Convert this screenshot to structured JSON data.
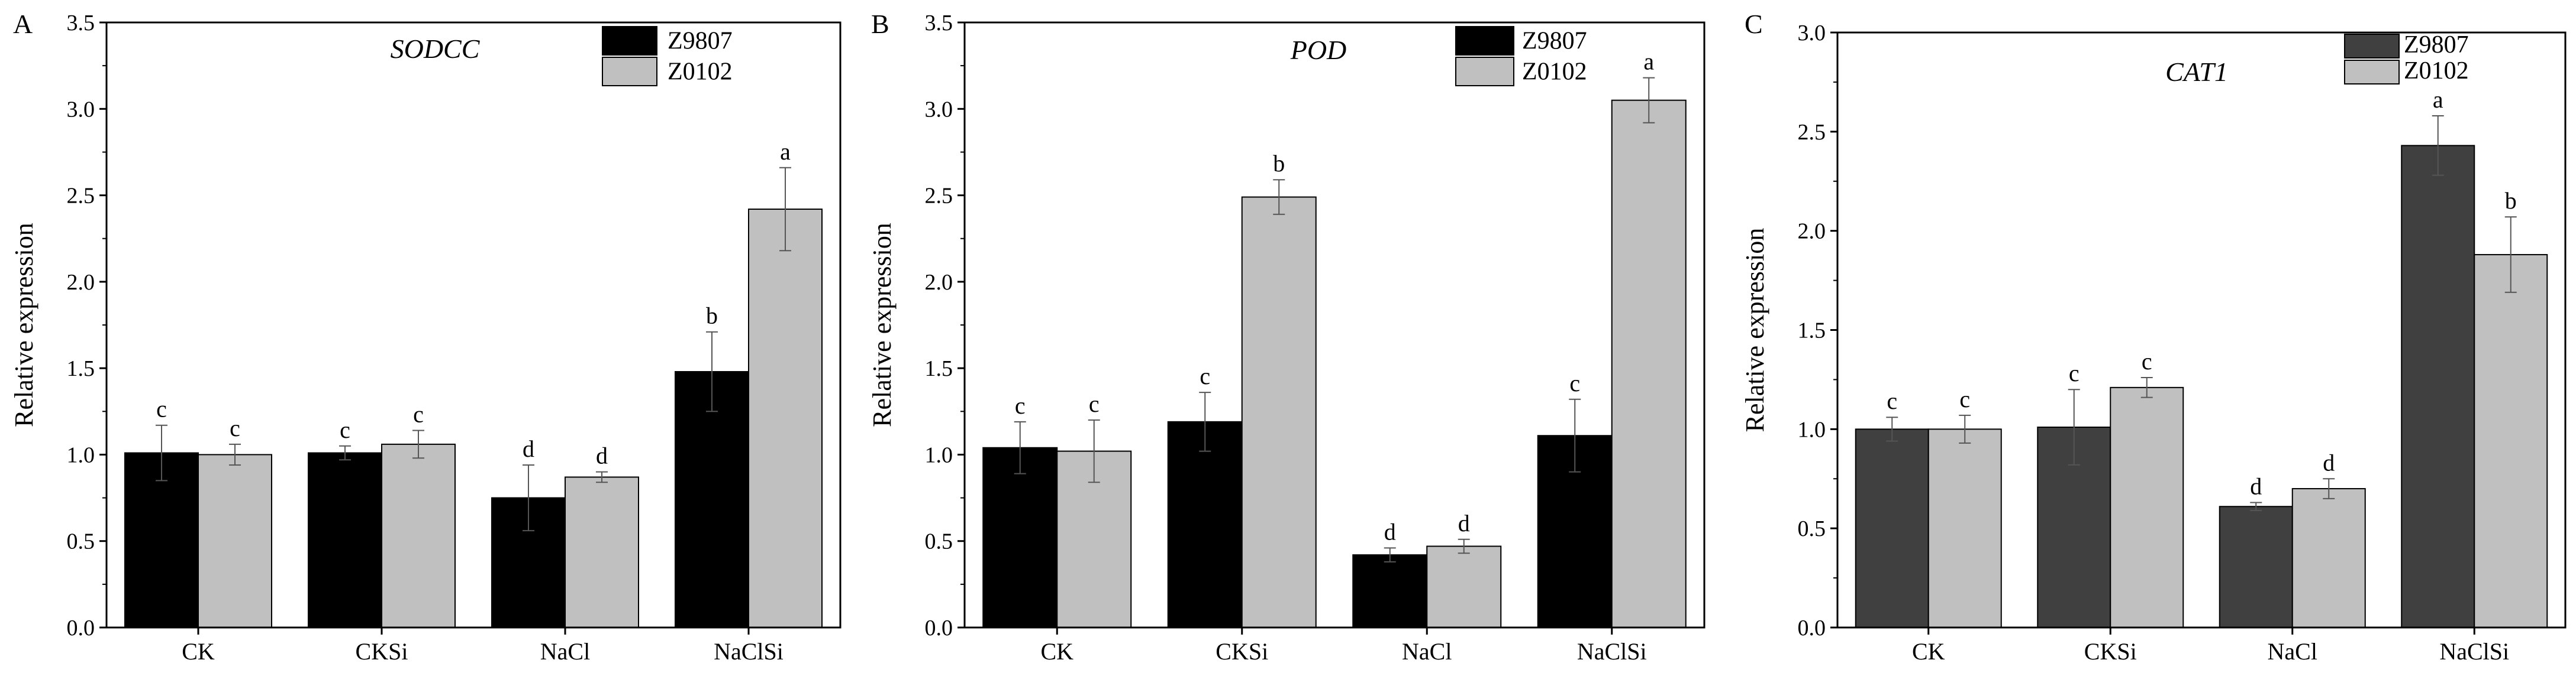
{
  "chart_data": [
    {
      "type": "bar",
      "panel_label": "A",
      "title": "SODCC",
      "xlabel": "",
      "ylabel": "Relative expression",
      "ylim": [
        0,
        3.5
      ],
      "yticks": [
        "0.0",
        "0.5",
        "1.0",
        "1.5",
        "2.0",
        "2.5",
        "3.0",
        "3.5"
      ],
      "categories": [
        "CK",
        "CKSi",
        "NaCl",
        "NaClSi"
      ],
      "series": [
        {
          "name": "Z9807",
          "color": "#000000",
          "values": [
            1.01,
            1.01,
            0.75,
            1.48
          ],
          "errors": [
            0.16,
            0.04,
            0.19,
            0.23
          ],
          "letters": [
            "c",
            "c",
            "d",
            "b"
          ]
        },
        {
          "name": "Z0102",
          "color": "#c0c0c0",
          "values": [
            1.0,
            1.06,
            0.87,
            2.42
          ],
          "errors": [
            0.06,
            0.08,
            0.03,
            0.24
          ],
          "letters": [
            "c",
            "c",
            "d",
            "a"
          ]
        }
      ],
      "legend_position": "top-right"
    },
    {
      "type": "bar",
      "panel_label": "B",
      "title": "POD",
      "xlabel": "",
      "ylabel": "Relative expression",
      "ylim": [
        0,
        3.5
      ],
      "yticks": [
        "0.0",
        "0.5",
        "1.0",
        "1.5",
        "2.0",
        "2.5",
        "3.0",
        "3.5"
      ],
      "categories": [
        "CK",
        "CKSi",
        "NaCl",
        "NaClSi"
      ],
      "series": [
        {
          "name": "Z9807",
          "color": "#000000",
          "values": [
            1.04,
            1.19,
            0.42,
            1.11
          ],
          "errors": [
            0.15,
            0.17,
            0.04,
            0.21
          ],
          "letters": [
            "c",
            "c",
            "d",
            "c"
          ]
        },
        {
          "name": "Z0102",
          "color": "#c0c0c0",
          "values": [
            1.02,
            2.49,
            0.47,
            3.05
          ],
          "errors": [
            0.18,
            0.1,
            0.04,
            0.13
          ],
          "letters": [
            "c",
            "b",
            "d",
            "a"
          ]
        }
      ],
      "legend_position": "top-right"
    },
    {
      "type": "bar",
      "panel_label": "C",
      "title": "CAT1",
      "xlabel": "",
      "ylabel": "Relative expression",
      "ylim": [
        0,
        3.0
      ],
      "yticks": [
        "0.0",
        "0.5",
        "1.0",
        "1.5",
        "2.0",
        "2.5",
        "3.0"
      ],
      "categories": [
        "CK",
        "CKSi",
        "NaCl",
        "NaClSi"
      ],
      "series": [
        {
          "name": "Z9807",
          "color": "#404040",
          "values": [
            1.0,
            1.01,
            0.61,
            2.43
          ],
          "errors": [
            0.06,
            0.19,
            0.02,
            0.15
          ],
          "letters": [
            "c",
            "c",
            "d",
            "a"
          ]
        },
        {
          "name": "Z0102",
          "color": "#c0c0c0",
          "values": [
            1.0,
            1.21,
            0.7,
            1.88
          ],
          "errors": [
            0.07,
            0.05,
            0.05,
            0.19
          ],
          "letters": [
            "c",
            "c",
            "d",
            "b"
          ]
        }
      ],
      "legend_position": "top-right"
    }
  ]
}
